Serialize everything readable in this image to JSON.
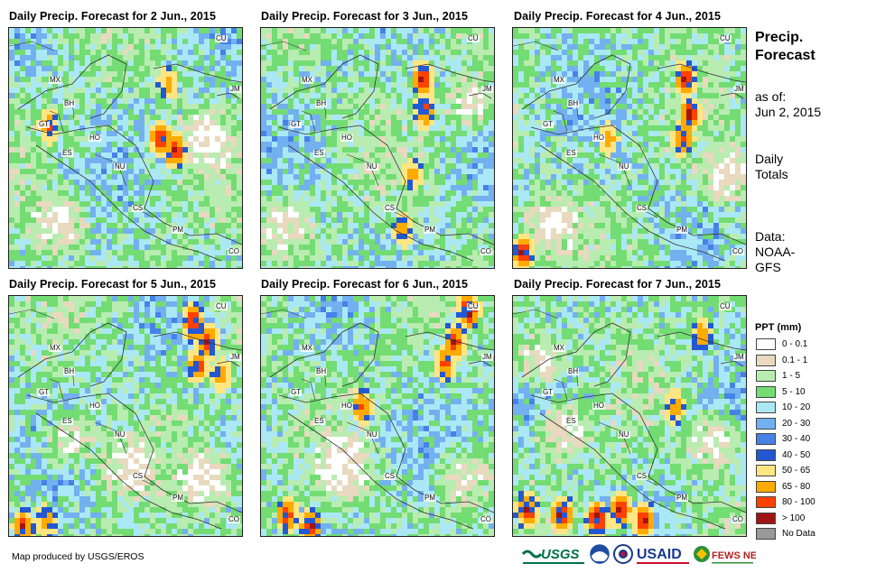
{
  "panels": [
    {
      "title": "Daily Precip. Forecast for 2 Jun., 2015",
      "seed": 11,
      "hot": [
        [
          0.64,
          0.45,
          0.9
        ],
        [
          0.7,
          0.5,
          0.9
        ],
        [
          0.16,
          0.4,
          0.6
        ],
        [
          0.67,
          0.22,
          0.5
        ]
      ],
      "dry": [
        [
          0.83,
          0.45
        ],
        [
          0.2,
          0.8
        ]
      ]
    },
    {
      "title": "Daily Precip. Forecast for 3 Jun., 2015",
      "seed": 23,
      "hot": [
        [
          0.68,
          0.2,
          0.9
        ],
        [
          0.69,
          0.33,
          0.8
        ],
        [
          0.64,
          0.6,
          0.5
        ],
        [
          0.6,
          0.83,
          0.6
        ]
      ],
      "dry": [
        [
          0.9,
          0.3
        ],
        [
          0.1,
          0.8
        ]
      ]
    },
    {
      "title": "Daily Precip. Forecast for 4 Jun., 2015",
      "seed": 37,
      "hot": [
        [
          0.73,
          0.2,
          0.9
        ],
        [
          0.75,
          0.35,
          0.9
        ],
        [
          0.72,
          0.45,
          0.7
        ],
        [
          0.03,
          0.93,
          0.9
        ],
        [
          0.4,
          0.45,
          0.5
        ]
      ],
      "dry": [
        [
          0.9,
          0.6
        ],
        [
          0.15,
          0.8
        ]
      ]
    },
    {
      "title": "Daily Precip. Forecast for 5 Jun., 2015",
      "seed": 41,
      "hot": [
        [
          0.78,
          0.1,
          0.95
        ],
        [
          0.84,
          0.18,
          0.9
        ],
        [
          0.8,
          0.28,
          0.8
        ],
        [
          0.9,
          0.32,
          0.6
        ],
        [
          0.05,
          0.95,
          0.8
        ],
        [
          0.15,
          0.93,
          0.6
        ]
      ],
      "dry": [
        [
          0.85,
          0.75
        ],
        [
          0.5,
          0.7
        ],
        [
          0.25,
          0.6
        ]
      ]
    },
    {
      "title": "Daily Precip. Forecast for 6 Jun., 2015",
      "seed": 53,
      "hot": [
        [
          0.88,
          0.05,
          1.0
        ],
        [
          0.82,
          0.18,
          0.85
        ],
        [
          0.78,
          0.27,
          0.7
        ],
        [
          0.42,
          0.45,
          0.7
        ],
        [
          0.2,
          0.95,
          0.95
        ],
        [
          0.1,
          0.9,
          0.8
        ]
      ],
      "dry": [
        [
          0.85,
          0.75
        ],
        [
          0.35,
          0.7
        ]
      ]
    },
    {
      "title": "Daily Precip. Forecast for 7 Jun., 2015",
      "seed": 67,
      "hot": [
        [
          0.2,
          0.9,
          1.0
        ],
        [
          0.35,
          0.92,
          1.0
        ],
        [
          0.45,
          0.88,
          0.95
        ],
        [
          0.55,
          0.92,
          0.9
        ],
        [
          0.05,
          0.88,
          0.9
        ],
        [
          0.8,
          0.15,
          0.6
        ],
        [
          0.68,
          0.45,
          0.6
        ]
      ],
      "dry": [
        [
          0.85,
          0.6
        ],
        [
          0.2,
          0.55
        ],
        [
          0.1,
          0.25
        ]
      ]
    }
  ],
  "country_labels": [
    "CU",
    "MX",
    "JM",
    "BH",
    "GT",
    "HO",
    "ES",
    "NU",
    "CS",
    "PM",
    "CO"
  ],
  "side": {
    "heading_line1": "Precip.",
    "heading_line2": "Forecast",
    "asof_line1": "as of:",
    "asof_line2": "Jun 2, 2015",
    "daily_line1": "Daily",
    "daily_line2": "Totals",
    "data_line1": "Data:",
    "data_line2": "NOAA-",
    "data_line3": "GFS"
  },
  "legend": {
    "title": "PPT (mm)",
    "items": [
      {
        "label": "0 - 0.1",
        "color": "#ffffff"
      },
      {
        "label": "0.1 - 1",
        "color": "#e8d9bf"
      },
      {
        "label": "1 - 5",
        "color": "#b9ecb0"
      },
      {
        "label": "5 - 10",
        "color": "#73dc73"
      },
      {
        "label": "10 - 20",
        "color": "#aae8f5"
      },
      {
        "label": "20 - 30",
        "color": "#73b0f0"
      },
      {
        "label": "30 - 40",
        "color": "#4682e6"
      },
      {
        "label": "40 - 50",
        "color": "#2358d2"
      },
      {
        "label": "50 - 65",
        "color": "#ffe682"
      },
      {
        "label": "65 - 80",
        "color": "#ffaa00"
      },
      {
        "label": "80 - 100",
        "color": "#ff4100"
      },
      {
        "label": "> 100",
        "color": "#a01414"
      },
      {
        "label": "No Data",
        "color": "#999999"
      }
    ]
  },
  "credit": "Map produced by USGS/EROS",
  "logos": {
    "usgs": "USGS",
    "usaid": "USAID",
    "fewsnet": "FEWS NET"
  }
}
